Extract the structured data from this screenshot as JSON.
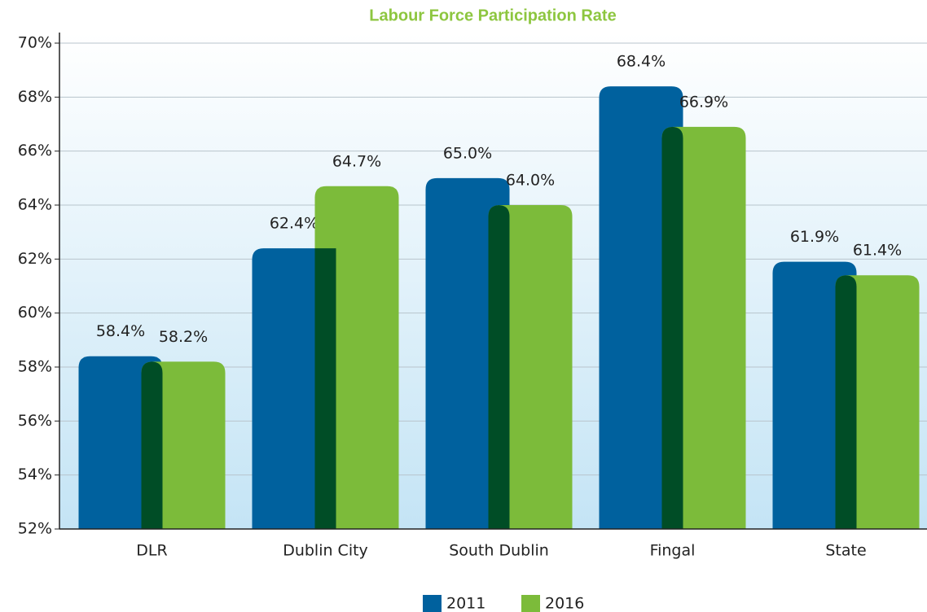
{
  "chart_data": {
    "type": "bar",
    "title": "Labour Force Participation Rate",
    "categories": [
      "DLR",
      "Dublin City",
      "South Dublin",
      "Fingal",
      "State"
    ],
    "series": [
      {
        "name": "2011",
        "color": "#00619e",
        "values": [
          58.4,
          62.4,
          65.0,
          68.4,
          61.9
        ],
        "value_labels": [
          "58.4%",
          "62.4%",
          "65.0%",
          "68.4%",
          "61.9%"
        ]
      },
      {
        "name": "2016",
        "color": "#7cbb3a",
        "values": [
          58.2,
          64.7,
          64.0,
          66.9,
          61.4
        ],
        "value_labels": [
          "58.2%",
          "64.7%",
          "64.0%",
          "66.9%",
          "61.4%"
        ]
      }
    ],
    "overlap_color": "#004d26",
    "ylim": [
      52,
      70
    ],
    "yticks": [
      {
        "value": 52,
        "label": "52%"
      },
      {
        "value": 54,
        "label": "54%"
      },
      {
        "value": 56,
        "label": "56%"
      },
      {
        "value": 58,
        "label": "58%"
      },
      {
        "value": 60,
        "label": "60%"
      },
      {
        "value": 62,
        "label": "62%"
      },
      {
        "value": 64,
        "label": "64%"
      },
      {
        "value": 66,
        "label": "66%"
      },
      {
        "value": 68,
        "label": "68%"
      },
      {
        "value": 70,
        "label": "70%"
      }
    ],
    "grid": true
  }
}
